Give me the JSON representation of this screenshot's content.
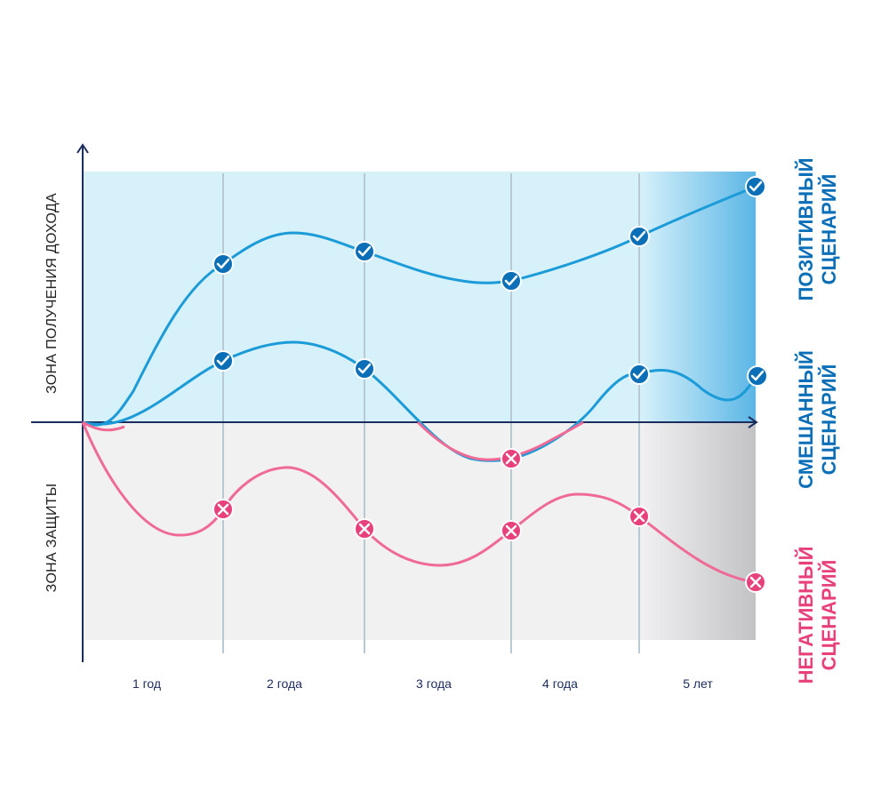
{
  "zones": {
    "income": "ЗОНА ПОЛУЧЕНИЯ ДОХОДА",
    "protection": "ЗОНА ЗАЩИТЫ"
  },
  "periods": [
    "1 год",
    "2 года",
    "3 года",
    "4 года",
    "5 лет"
  ],
  "scenarios": {
    "positive": {
      "line1": "ПОЗИТИВНЫЙ",
      "line2": "СЦЕНАРИЙ",
      "color": "#0b6fb8"
    },
    "mixed": {
      "line1": "СМЕШАННЫЙ",
      "line2": "СЦЕНАРИЙ",
      "color": "#0b6fb8"
    },
    "negative": {
      "line1": "НЕГАТИВНЫЙ",
      "line2": "СЦЕНАРИЙ",
      "color": "#e8407a"
    }
  },
  "colors": {
    "income_zone": "#d6f1fa",
    "protection_zone": "#f1f1f2",
    "axis": "#1b2c5e",
    "positive_line": "#1b9bd7",
    "negative_line": "#f06a96",
    "check_marker": "#0b6fb8",
    "cross_marker": "#e8407a"
  }
}
